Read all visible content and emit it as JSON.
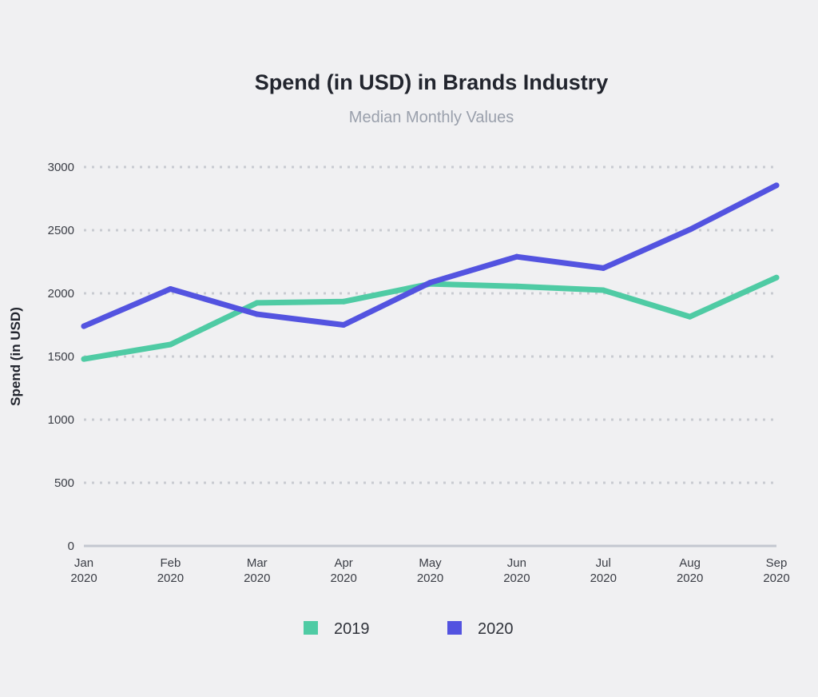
{
  "chart_data": {
    "type": "line",
    "title": "Spend (in USD) in Brands Industry",
    "subtitle": "Median Monthly Values",
    "xlabel": "",
    "ylabel": "Spend (in USD)",
    "categories": [
      [
        "Jan",
        "2020"
      ],
      [
        "Feb",
        "2020"
      ],
      [
        "Mar",
        "2020"
      ],
      [
        "Apr",
        "2020"
      ],
      [
        "May",
        "2020"
      ],
      [
        "Jun",
        "2020"
      ],
      [
        "Jul",
        "2020"
      ],
      [
        "Aug",
        "2020"
      ],
      [
        "Sep",
        "2020"
      ]
    ],
    "ylim": [
      0,
      3000
    ],
    "yticks": [
      0,
      500,
      1000,
      1500,
      2000,
      2500,
      3000
    ],
    "grid": true,
    "legend_position": "bottom-center",
    "series": [
      {
        "name": "2019",
        "color": "#4fcba4",
        "values": [
          1480,
          1595,
          1925,
          1935,
          2075,
          2055,
          2025,
          1815,
          2125
        ]
      },
      {
        "name": "2020",
        "color": "#5353e0",
        "values": [
          1740,
          2035,
          1835,
          1750,
          2085,
          2290,
          2200,
          2505,
          2855
        ]
      }
    ],
    "colors": {
      "grid": "#c9cbd1",
      "baseline": "#c3c7d0"
    }
  }
}
